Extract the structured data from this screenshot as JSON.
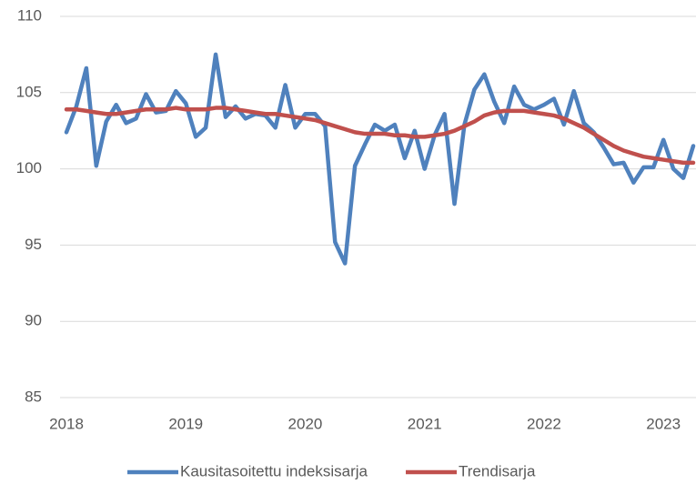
{
  "chart_data": {
    "type": "line",
    "categories": [
      "2018",
      null,
      null,
      null,
      null,
      null,
      null,
      null,
      null,
      null,
      null,
      null,
      "2019",
      null,
      null,
      null,
      null,
      null,
      null,
      null,
      null,
      null,
      null,
      null,
      "2020",
      null,
      null,
      null,
      null,
      null,
      null,
      null,
      null,
      null,
      null,
      null,
      "2021",
      null,
      null,
      null,
      null,
      null,
      null,
      null,
      null,
      null,
      null,
      null,
      "2022",
      null,
      null,
      null,
      null,
      null,
      null,
      null,
      null,
      null,
      null,
      null,
      "2023",
      null,
      null,
      null
    ],
    "series": [
      {
        "name": "Kausitasoitettu indeksisarja",
        "color": "#4f81bd",
        "values": [
          102.4,
          104.1,
          106.6,
          100.2,
          103.1,
          104.2,
          103.0,
          103.3,
          104.9,
          103.7,
          103.8,
          105.1,
          104.3,
          102.1,
          102.7,
          107.5,
          103.4,
          104.1,
          103.3,
          103.6,
          103.5,
          102.7,
          105.5,
          102.7,
          103.6,
          103.6,
          102.8,
          95.2,
          93.8,
          100.2,
          101.6,
          102.9,
          102.5,
          102.9,
          100.7,
          102.5,
          100.0,
          102.2,
          103.6,
          97.7,
          102.9,
          105.2,
          106.2,
          104.4,
          103.0,
          105.4,
          104.2,
          103.9,
          104.2,
          104.6,
          102.9,
          105.1,
          103.0,
          102.4,
          101.4,
          100.3,
          100.4,
          99.1,
          100.1,
          100.1,
          101.9,
          100.0,
          99.4,
          101.5
        ]
      },
      {
        "name": "Trendisarja",
        "color": "#c0504d",
        "values": [
          103.9,
          103.9,
          103.8,
          103.7,
          103.6,
          103.6,
          103.7,
          103.8,
          103.9,
          103.9,
          103.9,
          104.0,
          103.9,
          103.9,
          103.9,
          104.0,
          104.0,
          103.9,
          103.8,
          103.7,
          103.6,
          103.6,
          103.5,
          103.4,
          103.3,
          103.2,
          103.0,
          102.8,
          102.6,
          102.4,
          102.3,
          102.3,
          102.3,
          102.2,
          102.2,
          102.1,
          102.1,
          102.2,
          102.3,
          102.5,
          102.8,
          103.1,
          103.5,
          103.7,
          103.8,
          103.8,
          103.8,
          103.7,
          103.6,
          103.5,
          103.3,
          103.0,
          102.7,
          102.3,
          101.9,
          101.5,
          101.2,
          101.0,
          100.8,
          100.7,
          100.6,
          100.5,
          100.4,
          100.4
        ]
      }
    ],
    "ylim": [
      85,
      110
    ],
    "yticks": [
      85,
      90,
      95,
      100,
      105,
      110
    ],
    "grid": true,
    "legend": "bottom"
  }
}
